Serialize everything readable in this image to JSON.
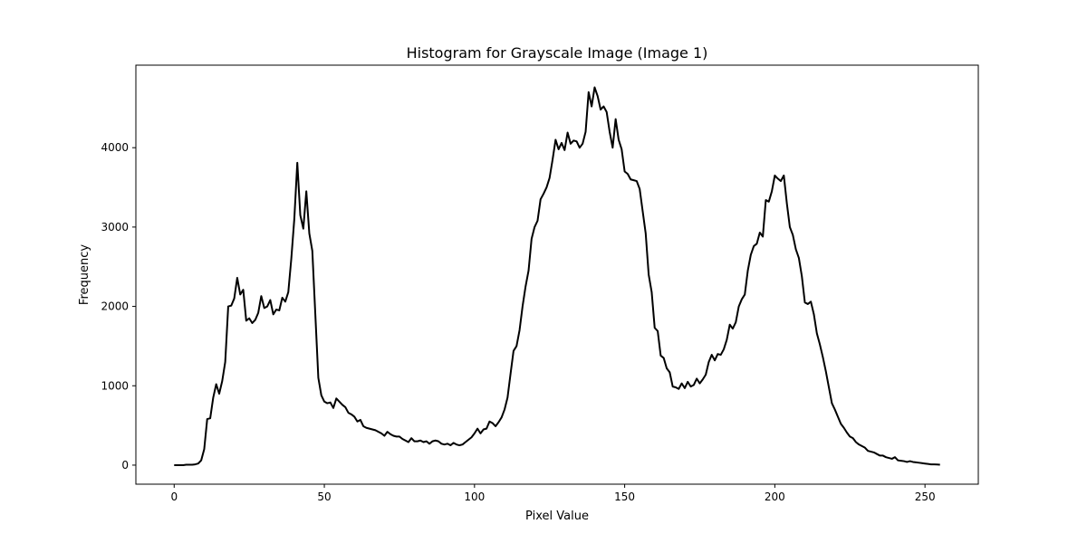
{
  "chart_data": {
    "type": "line",
    "title": "Histogram for Grayscale Image (Image 1)",
    "xlabel": "Pixel Value",
    "ylabel": "Frequency",
    "xlim": [
      -12.75,
      267.75
    ],
    "ylim": [
      -240,
      5040
    ],
    "x_ticks": [
      0,
      50,
      100,
      150,
      200,
      250
    ],
    "y_ticks": [
      0,
      1000,
      2000,
      3000,
      4000
    ],
    "line_color": "#000000",
    "grid": false,
    "legend": "none",
    "x_start": 0,
    "x_step": 1,
    "series": [
      {
        "values": [
          0,
          0,
          0,
          0,
          5,
          5,
          5,
          10,
          20,
          60,
          200,
          580,
          590,
          850,
          1020,
          900,
          1060,
          1300,
          2000,
          2010,
          2100,
          2360,
          2150,
          2210,
          1820,
          1850,
          1790,
          1830,
          1920,
          2130,
          1980,
          2000,
          2080,
          1900,
          1960,
          1950,
          2110,
          2060,
          2180,
          2600,
          3100,
          3810,
          3150,
          2980,
          3450,
          2920,
          2700,
          1900,
          1100,
          880,
          800,
          780,
          790,
          720,
          840,
          800,
          760,
          730,
          660,
          640,
          610,
          550,
          570,
          490,
          470,
          460,
          450,
          440,
          420,
          400,
          370,
          420,
          390,
          370,
          360,
          360,
          330,
          310,
          290,
          340,
          300,
          300,
          310,
          290,
          300,
          270,
          300,
          310,
          300,
          270,
          260,
          270,
          250,
          280,
          260,
          250,
          260,
          290,
          320,
          350,
          400,
          460,
          400,
          450,
          460,
          550,
          530,
          490,
          540,
          600,
          700,
          850,
          1150,
          1440,
          1500,
          1700,
          2000,
          2250,
          2450,
          2850,
          3000,
          3080,
          3350,
          3420,
          3500,
          3620,
          3850,
          4100,
          3980,
          4060,
          3970,
          4190,
          4050,
          4090,
          4080,
          4000,
          4050,
          4200,
          4700,
          4520,
          4760,
          4650,
          4480,
          4520,
          4450,
          4200,
          4000,
          4360,
          4100,
          3980,
          3700,
          3670,
          3600,
          3590,
          3580,
          3480,
          3200,
          2920,
          2400,
          2180,
          1730,
          1690,
          1380,
          1350,
          1220,
          1170,
          990,
          980,
          960,
          1030,
          970,
          1050,
          990,
          1010,
          1090,
          1030,
          1080,
          1140,
          1300,
          1390,
          1320,
          1400,
          1390,
          1460,
          1580,
          1770,
          1720,
          1800,
          2000,
          2090,
          2150,
          2450,
          2650,
          2760,
          2790,
          2930,
          2880,
          3340,
          3320,
          3450,
          3650,
          3610,
          3580,
          3650,
          3300,
          3000,
          2900,
          2720,
          2610,
          2380,
          2050,
          2030,
          2060,
          1900,
          1660,
          1520,
          1360,
          1180,
          980,
          780,
          700,
          610,
          520,
          470,
          410,
          360,
          340,
          290,
          260,
          240,
          220,
          180,
          170,
          160,
          140,
          120,
          120,
          100,
          90,
          80,
          100,
          60,
          55,
          50,
          40,
          50,
          40,
          35,
          30,
          25,
          20,
          15,
          10,
          10,
          8,
          5
        ]
      }
    ]
  }
}
